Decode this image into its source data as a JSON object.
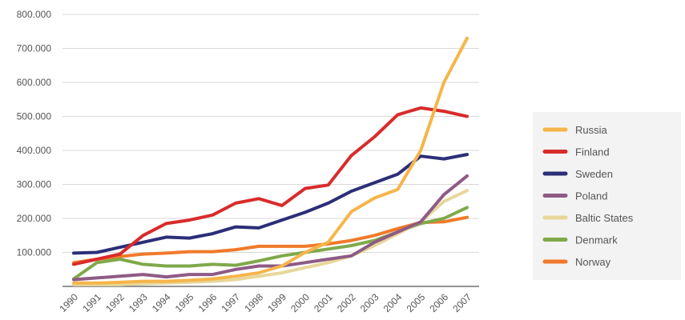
{
  "chart_data": {
    "type": "line",
    "title": "",
    "xlabel": "",
    "ylabel": "",
    "x": [
      "1990",
      "1991",
      "1992",
      "1993",
      "1994",
      "1995",
      "1996",
      "1997",
      "1998",
      "1999",
      "2000",
      "2001",
      "2002",
      "2003",
      "2004",
      "2005",
      "2006",
      "2007"
    ],
    "y_ticks": [
      "100.000",
      "200.000",
      "300.000",
      "400.000",
      "500.000",
      "600.000",
      "700.000",
      "800.000"
    ],
    "ylim": [
      0,
      800000
    ],
    "grid": true,
    "legend_position": "right",
    "series": [
      {
        "name": "Russia",
        "color": "#f6b54a",
        "values": [
          10000,
          10000,
          12000,
          15000,
          15000,
          18000,
          22000,
          30000,
          40000,
          60000,
          100000,
          130000,
          220000,
          260000,
          285000,
          400000,
          600000,
          730000
        ]
      },
      {
        "name": "Finland",
        "color": "#d92b2b",
        "values": [
          65000,
          80000,
          95000,
          150000,
          185000,
          195000,
          210000,
          245000,
          258000,
          238000,
          288000,
          298000,
          385000,
          440000,
          505000,
          525000,
          515000,
          500000
        ]
      },
      {
        "name": "Sweden",
        "color": "#2c2e78",
        "values": [
          98000,
          100000,
          115000,
          130000,
          145000,
          142000,
          155000,
          175000,
          172000,
          195000,
          218000,
          245000,
          280000,
          305000,
          330000,
          383000,
          375000,
          388000
        ]
      },
      {
        "name": "Poland",
        "color": "#8e5b85",
        "values": [
          20000,
          25000,
          30000,
          35000,
          28000,
          35000,
          35000,
          50000,
          60000,
          60000,
          70000,
          80000,
          90000,
          130000,
          160000,
          190000,
          270000,
          325000
        ]
      },
      {
        "name": "Baltic States",
        "color": "#e8d79a",
        "values": [
          5000,
          5000,
          5000,
          8000,
          10000,
          12000,
          15000,
          20000,
          30000,
          40000,
          55000,
          70000,
          90000,
          120000,
          155000,
          190000,
          250000,
          282000
        ]
      },
      {
        "name": "Denmark",
        "color": "#7fa94a",
        "values": [
          22000,
          70000,
          80000,
          65000,
          60000,
          60000,
          65000,
          62000,
          75000,
          90000,
          100000,
          110000,
          120000,
          135000,
          160000,
          185000,
          200000,
          232000
        ]
      },
      {
        "name": "Norway",
        "color": "#f07a2a",
        "values": [
          70000,
          80000,
          88000,
          95000,
          98000,
          102000,
          102000,
          108000,
          118000,
          118000,
          118000,
          125000,
          135000,
          150000,
          170000,
          188000,
          190000,
          203000
        ]
      }
    ]
  }
}
